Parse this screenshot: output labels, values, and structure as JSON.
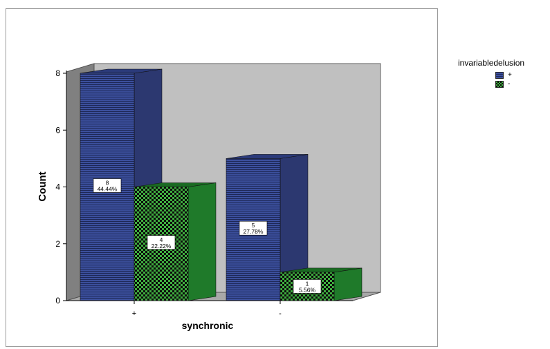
{
  "chart_data": {
    "type": "bar",
    "xlabel": "synchronic",
    "ylabel": "Count",
    "categories": [
      "+",
      "-"
    ],
    "ylim": [
      0,
      8
    ],
    "yticks": [
      0,
      2,
      4,
      6,
      8
    ],
    "grid": false,
    "legend_title": "invariabledelusion",
    "legend_position": "right",
    "series": [
      {
        "name": "+",
        "color": "#3b4f9c",
        "pattern": "horizontal-lines",
        "values": [
          8,
          5
        ],
        "labels": [
          "8\n44.44%",
          "5\n27.78%"
        ]
      },
      {
        "name": "-",
        "color": "#1f7a2a",
        "pattern": "checkerboard",
        "values": [
          4,
          1
        ],
        "labels": [
          "4\n22.22%",
          "1\n5.56%"
        ]
      }
    ]
  },
  "colors": {
    "wall": "#c0c0c0",
    "side_wall": "#808080",
    "floor": "#a8a8a8"
  }
}
